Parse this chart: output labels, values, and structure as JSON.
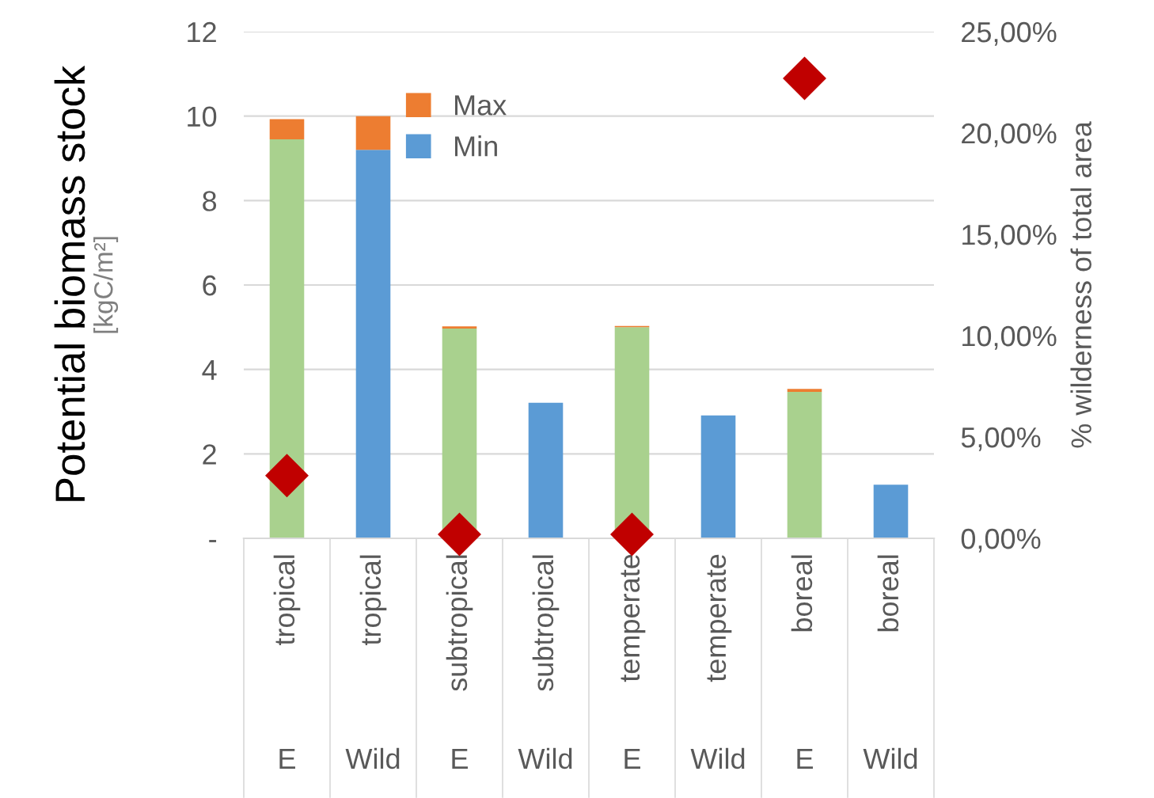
{
  "chart_data": {
    "type": "bar",
    "stacked": true,
    "categories": [
      "tropical\nE",
      "tropical\nWild",
      "subtropical\nE",
      "subtropical\nWild",
      "temperate\nE",
      "temperate\nWild",
      "boreal\nE",
      "boreal\nWild"
    ],
    "series": [
      {
        "name": "Min",
        "color": "#5b9bd5",
        "colors": [
          "#a9d18e",
          "#5b9bd5",
          "#a9d18e",
          "#5b9bd5",
          "#a9d18e",
          "#5b9bd5",
          "#a9d18e",
          "#5b9bd5"
        ],
        "values": [
          9.45,
          9.2,
          4.97,
          3.21,
          5.0,
          2.91,
          3.47,
          1.27
        ]
      },
      {
        "name": "Max",
        "color": "#ed7d31",
        "values": [
          0.48,
          0.8,
          0.05,
          0,
          0.03,
          0,
          0.07,
          0
        ]
      },
      {
        "type": "scatter",
        "axis": "y2",
        "color": "#c00000",
        "marker": "diamond",
        "values": [
          3.1,
          null,
          0.2,
          null,
          0.2,
          null,
          22.7,
          null
        ]
      }
    ],
    "ylabel": "Potential biomass stock",
    "y2label": "% wilderness of total area",
    "annotations": [
      "[kgC/m²]"
    ],
    "ylim": [
      0,
      12
    ],
    "yticks": [
      {
        "value": 0,
        "label": "-"
      },
      2,
      4,
      6,
      8,
      10,
      12
    ],
    "y2lim": [
      0,
      25
    ],
    "y2ticks": [
      {
        "value": 0,
        "label": "0,00%"
      },
      {
        "value": 5,
        "label": "5,00%"
      },
      {
        "value": 10,
        "label": "10,00%"
      },
      {
        "value": 15,
        "label": "15,00%"
      },
      {
        "value": 20,
        "label": "20,00%"
      },
      {
        "value": 25,
        "label": "25,00%"
      }
    ],
    "grid": "y",
    "legend": "top"
  }
}
